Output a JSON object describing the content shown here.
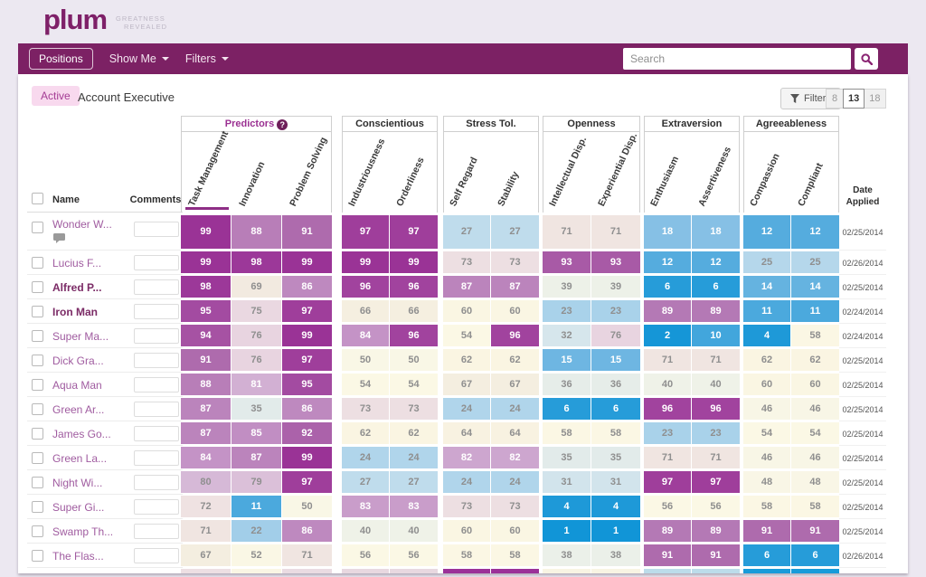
{
  "brand": {
    "logo": "plum",
    "tagline1": "GREATNESS",
    "tagline2": "REVEALED"
  },
  "nav": {
    "positions": "Positions",
    "show_me": "Show Me",
    "filters": "Filters",
    "search_placeholder": "Search"
  },
  "toolbar": {
    "status_badge": "Active",
    "page_title": "Account Executive",
    "filters_button": "Filters",
    "view_buttons": [
      "8",
      "13",
      "18"
    ],
    "active_view": "13"
  },
  "table": {
    "left_headers": {
      "name": "Name",
      "comments": "Comments"
    },
    "date_header_line1": "Date",
    "date_header_line2": "Applied",
    "groups": [
      {
        "label": "Predictors",
        "has_help": true,
        "accent": true,
        "columns": [
          "Task Management",
          "Innovation",
          "Problem Solving"
        ],
        "sorted_column": 0
      },
      {
        "label": "Conscientious",
        "has_help": false,
        "accent": false,
        "columns": [
          "Industriousness",
          "Orderliness"
        ]
      },
      {
        "label": "Stress Tol.",
        "has_help": false,
        "accent": false,
        "columns": [
          "Self Regard",
          "Stability"
        ]
      },
      {
        "label": "Openness",
        "has_help": false,
        "accent": false,
        "columns": [
          "Intellectual Disp.",
          "Experiential Disp."
        ]
      },
      {
        "label": "Extraversion",
        "has_help": false,
        "accent": false,
        "columns": [
          "Enthusiasm",
          "Assertiveness"
        ]
      },
      {
        "label": "Agreeableness",
        "has_help": false,
        "accent": false,
        "columns": [
          "Compassion",
          "Compliant"
        ]
      }
    ],
    "rows": [
      {
        "name": "Wonder W...",
        "bold": false,
        "has_comment": true,
        "scores": [
          99,
          88,
          91,
          97,
          97,
          27,
          27,
          71,
          71,
          18,
          18,
          12,
          12
        ],
        "date": "02/25/2014"
      },
      {
        "name": "Lucius F...",
        "bold": false,
        "has_comment": false,
        "scores": [
          99,
          98,
          99,
          99,
          99,
          73,
          73,
          93,
          93,
          12,
          12,
          25,
          25
        ],
        "date": "02/26/2014"
      },
      {
        "name": "Alfred P...",
        "bold": true,
        "has_comment": false,
        "scores": [
          98,
          69,
          86,
          96,
          96,
          87,
          87,
          39,
          39,
          6,
          6,
          14,
          14
        ],
        "date": "02/25/2014"
      },
      {
        "name": "Iron Man",
        "bold": true,
        "has_comment": false,
        "scores": [
          95,
          75,
          97,
          66,
          66,
          60,
          60,
          23,
          23,
          89,
          89,
          11,
          11
        ],
        "date": "02/24/2014"
      },
      {
        "name": "Super Ma...",
        "bold": false,
        "has_comment": false,
        "scores": [
          94,
          76,
          99,
          84,
          96,
          54,
          96,
          32,
          76,
          2,
          10,
          4,
          58
        ],
        "date": "02/24/2014"
      },
      {
        "name": "Dick Gra...",
        "bold": false,
        "has_comment": false,
        "scores": [
          91,
          76,
          97,
          50,
          50,
          62,
          62,
          15,
          15,
          71,
          71,
          62,
          62
        ],
        "date": "02/25/2014"
      },
      {
        "name": "Aqua Man",
        "bold": false,
        "has_comment": false,
        "scores": [
          88,
          81,
          95,
          54,
          54,
          67,
          67,
          36,
          36,
          40,
          40,
          60,
          60
        ],
        "date": "02/25/2014"
      },
      {
        "name": "Green Ar...",
        "bold": false,
        "has_comment": false,
        "scores": [
          87,
          35,
          86,
          73,
          73,
          24,
          24,
          6,
          6,
          96,
          96,
          46,
          46
        ],
        "date": "02/25/2014"
      },
      {
        "name": "James Go...",
        "bold": false,
        "has_comment": false,
        "scores": [
          87,
          85,
          92,
          62,
          62,
          64,
          64,
          58,
          58,
          23,
          23,
          54,
          54
        ],
        "date": "02/25/2014"
      },
      {
        "name": "Green La...",
        "bold": false,
        "has_comment": false,
        "scores": [
          84,
          87,
          99,
          24,
          24,
          82,
          82,
          35,
          35,
          71,
          71,
          46,
          46
        ],
        "date": "02/25/2014"
      },
      {
        "name": "Night Wi...",
        "bold": false,
        "has_comment": false,
        "scores": [
          80,
          79,
          97,
          27,
          27,
          24,
          24,
          31,
          31,
          97,
          97,
          48,
          48
        ],
        "date": "02/25/2014"
      },
      {
        "name": "Super Gi...",
        "bold": false,
        "has_comment": false,
        "scores": [
          72,
          11,
          50,
          83,
          83,
          73,
          73,
          4,
          4,
          56,
          56,
          58,
          58
        ],
        "date": "02/25/2014"
      },
      {
        "name": "Swamp Th...",
        "bold": false,
        "has_comment": false,
        "scores": [
          71,
          22,
          86,
          40,
          40,
          60,
          60,
          1,
          1,
          89,
          89,
          91,
          91
        ],
        "date": "02/25/2014"
      },
      {
        "name": "The Flas...",
        "bold": false,
        "has_comment": false,
        "scores": [
          67,
          52,
          71,
          56,
          56,
          58,
          58,
          38,
          38,
          91,
          91,
          6,
          6
        ],
        "date": "02/26/2014"
      }
    ],
    "partial_row": {
      "cell_colors": [
        "#EDDFE3",
        "#FAF6E4",
        "#EADBE2",
        "#E8D8E0",
        "#E8D8E0",
        "#9B3198",
        "#9B3198",
        "#F8F4E3",
        "#F8F4E3",
        "#BCDCEA",
        "#BCDCEA",
        "#189BD9",
        "#189BD9"
      ]
    }
  },
  "colors": {
    "navbar": "#7C2164",
    "logo": "#7E2068",
    "accent": "#9B3192",
    "badge_bg": "#F8D9EE",
    "badge_text": "#A43C94",
    "mid_text": "#8F8F8F",
    "scale": [
      [
        0,
        "#0D93D6"
      ],
      [
        8,
        "#2E9FDA"
      ],
      [
        12,
        "#55ACDE"
      ],
      [
        18,
        "#86C0E5"
      ],
      [
        24,
        "#B0D5EB"
      ],
      [
        28,
        "#C4DEEC"
      ],
      [
        32,
        "#D6E6EC"
      ],
      [
        36,
        "#E6EDE9"
      ],
      [
        40,
        "#EFF2E8"
      ],
      [
        46,
        "#F8F6E6"
      ],
      [
        55,
        "#FBF8E5"
      ],
      [
        62,
        "#FAF5E2"
      ],
      [
        68,
        "#F3ECDF"
      ],
      [
        72,
        "#EFE2E2"
      ],
      [
        76,
        "#E8D4E0"
      ],
      [
        80,
        "#D6B9D7"
      ],
      [
        84,
        "#C493C6"
      ],
      [
        87,
        "#BB84BC"
      ],
      [
        90,
        "#B173B1"
      ],
      [
        93,
        "#A85AA6"
      ],
      [
        96,
        "#A1439E"
      ],
      [
        100,
        "#972D93"
      ]
    ],
    "white_text_low_max": 18,
    "white_text_high_min": 81
  }
}
